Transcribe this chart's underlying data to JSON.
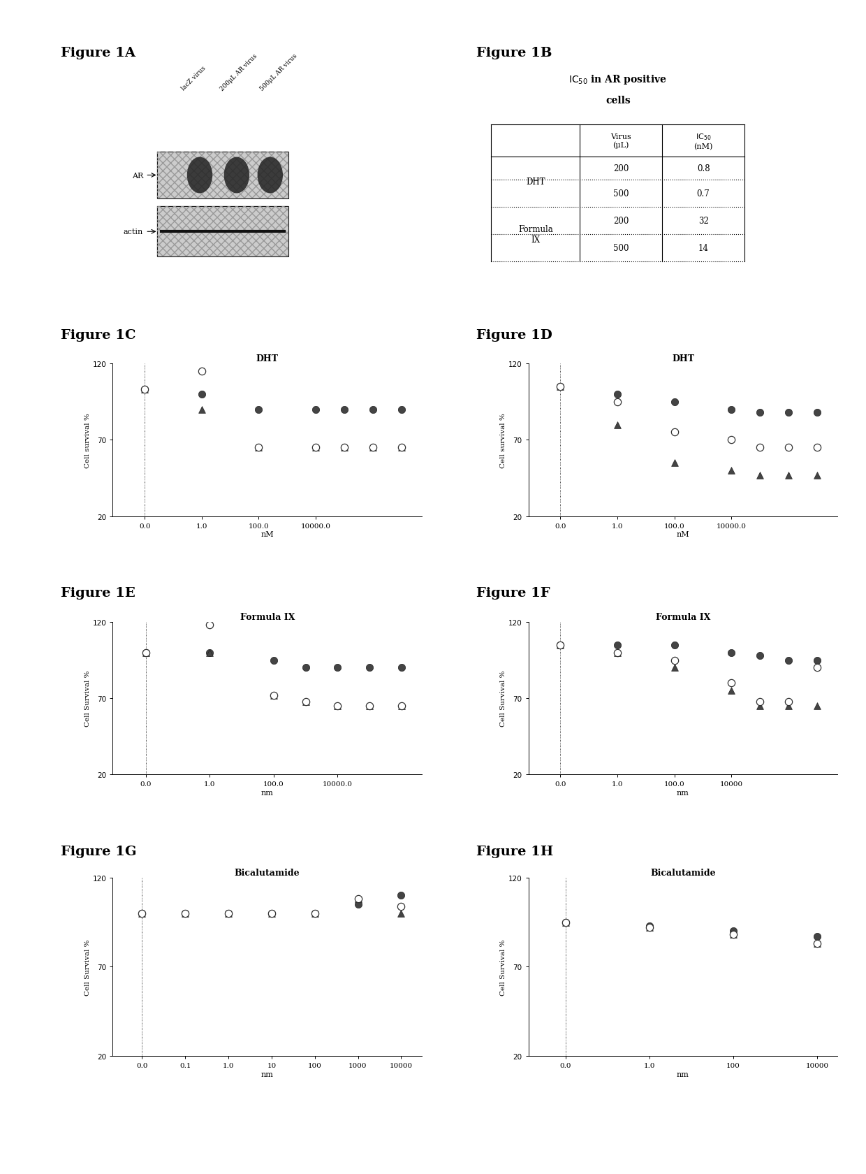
{
  "fig_labels": [
    "Figure 1A",
    "Figure 1B",
    "Figure 1C",
    "Figure 1D",
    "Figure 1E",
    "Figure 1F",
    "Figure 1G",
    "Figure 1H"
  ],
  "blot_labels": [
    "lacZ virus",
    "200μL AR virus",
    "500μL AR virus"
  ],
  "blot_row_labels": [
    "AR",
    "actin"
  ],
  "table_title_line1": "IC",
  "table_title_line2": " in AR positive",
  "table_title_line3": "cells",
  "table_col1_header": "Virus",
  "table_col1_unit": "(μL)",
  "table_col2_header": "IC",
  "table_col2_unit": "(nM)",
  "table_rows": [
    [
      "DHT",
      "200",
      "0.8"
    ],
    [
      "",
      "500",
      "0.7"
    ],
    [
      "Formula\nIX",
      "200",
      "32"
    ],
    [
      "",
      "500",
      "14"
    ]
  ],
  "figC_title": "DHT",
  "figD_title": "DHT",
  "figE_title": "Formula IX",
  "figF_title": "Formula IX",
  "figG_title": "Bicalutamide",
  "figH_title": "Bicalutamide",
  "ylabel_C": "Cell survival %",
  "ylabel_D": "Cell survival %",
  "ylabel_E": "Cell Survival %",
  "ylabel_F": "Cell Survival %",
  "ylabel_G": "Cell Survival %",
  "ylabel_H": "Cell Survival %",
  "xlabel_nM": "nM",
  "xlabel_nm": "nm",
  "figC_xticks": [
    0,
    1,
    2,
    3
  ],
  "figC_xticklabels": [
    "0.0",
    "1.0",
    "100.0",
    "10000.0"
  ],
  "figD_xticks": [
    0,
    1,
    2,
    3
  ],
  "figD_xticklabels": [
    "0.0",
    "1.0",
    "100.0",
    "10000.0"
  ],
  "figE_xticks": [
    0,
    1,
    2,
    3
  ],
  "figE_xticklabels": [
    "0.0",
    "1.0",
    "100.0",
    "10000.0"
  ],
  "figF_xticks": [
    0,
    1,
    2,
    3
  ],
  "figF_xticklabels": [
    "0.0",
    "1.0",
    "100.0",
    "10000"
  ],
  "figG_xticks": [
    0,
    1,
    2,
    3,
    4,
    5,
    6
  ],
  "figG_xticklabels": [
    "0.0",
    "0.1",
    "1.0",
    "10",
    "100",
    "1000",
    "10000"
  ],
  "figH_xticks": [
    0,
    1,
    2,
    3
  ],
  "figH_xticklabels": [
    "0.0",
    "1.0",
    "100",
    "10000"
  ],
  "ylim": [
    20,
    120
  ],
  "yticks": [
    20,
    70,
    120
  ],
  "figC_xdata": [
    0,
    1,
    2,
    3,
    3.5,
    4,
    4.5
  ],
  "figC_filled": [
    103,
    100,
    90,
    90,
    90,
    90,
    90
  ],
  "figC_open": [
    103,
    115,
    65,
    65,
    65,
    65,
    65
  ],
  "figC_triangle": [
    103,
    90,
    65,
    65,
    65,
    65,
    65
  ],
  "figD_xdata": [
    0,
    1,
    2,
    3,
    3.5,
    4,
    4.5
  ],
  "figD_filled": [
    105,
    100,
    95,
    90,
    88,
    88,
    88
  ],
  "figD_open": [
    105,
    95,
    75,
    70,
    65,
    65,
    65
  ],
  "figD_triangle": [
    105,
    80,
    55,
    50,
    47,
    47,
    47
  ],
  "figE_xdata": [
    0,
    1,
    2,
    2.5,
    3,
    3.5,
    4
  ],
  "figE_filled": [
    100,
    100,
    95,
    90,
    90,
    90,
    90
  ],
  "figE_open": [
    100,
    118,
    72,
    68,
    65,
    65,
    65
  ],
  "figE_triangle": [
    100,
    100,
    72,
    68,
    65,
    65,
    65
  ],
  "figF_xdata": [
    0,
    1,
    2,
    3,
    3.5,
    4,
    4.5
  ],
  "figF_filled": [
    105,
    105,
    105,
    100,
    98,
    95,
    95
  ],
  "figF_open": [
    105,
    100,
    95,
    80,
    68,
    68,
    90
  ],
  "figF_triangle": [
    105,
    100,
    90,
    75,
    65,
    65,
    65
  ],
  "figG_xdata": [
    0,
    1,
    2,
    3,
    4,
    5,
    6
  ],
  "figG_filled": [
    100,
    100,
    100,
    100,
    100,
    105,
    110
  ],
  "figG_open": [
    100,
    100,
    100,
    100,
    100,
    108,
    104
  ],
  "figG_triangle": [
    100,
    100,
    100,
    100,
    100,
    108,
    100
  ],
  "figH_xdata": [
    0,
    1,
    2,
    3
  ],
  "figH_filled": [
    95,
    93,
    90,
    87
  ],
  "figH_open": [
    95,
    92,
    88,
    83
  ],
  "figH_triangle": [
    95,
    92,
    88,
    83
  ],
  "background_color": "#ffffff"
}
